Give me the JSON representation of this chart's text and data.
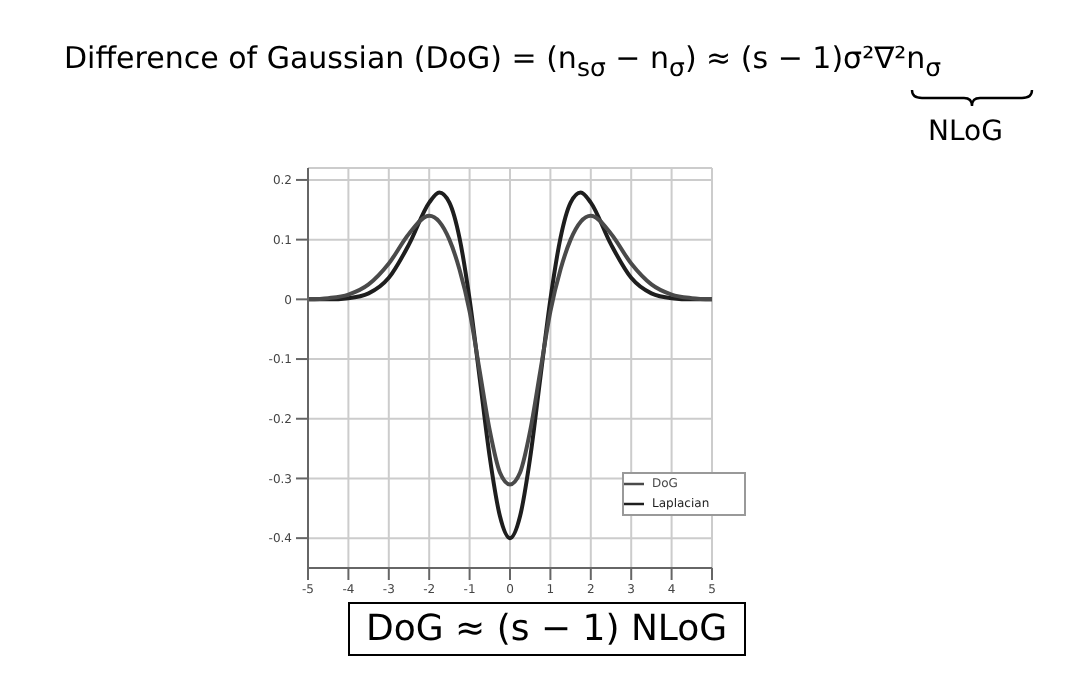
{
  "chart_data": {
    "type": "line",
    "title": "Difference of Gaussian (DoG) = (n$_{sσ}$ − n$_{σ}$) ≈ (s − 1)σ²∇²n$_{σ}$",
    "annotations": [
      "NLoG",
      "DoG ≈ (s − 1) NLoG"
    ],
    "x": [
      -5,
      -4.5,
      -4,
      -3.5,
      -3,
      -2.5,
      -2,
      -1.75,
      -1.5,
      -1.25,
      -1,
      -0.75,
      -0.5,
      -0.25,
      0,
      0.25,
      0.5,
      0.75,
      1,
      1.25,
      1.5,
      1.75,
      2,
      2.5,
      3,
      3.5,
      4,
      4.5,
      5
    ],
    "series": [
      {
        "name": "Laplacian",
        "color": "#1e1e1e",
        "values": [
          0,
          0,
          0.002,
          0.01,
          0.036,
          0.092,
          0.162,
          0.179,
          0.162,
          0.103,
          0,
          -0.132,
          -0.265,
          -0.363,
          -0.4,
          -0.363,
          -0.265,
          -0.132,
          0,
          0.103,
          0.162,
          0.179,
          0.162,
          0.092,
          0.036,
          0.01,
          0.002,
          0,
          0
        ]
      },
      {
        "name": "DoG",
        "color": "#4a4a4a",
        "values": [
          0,
          0.002,
          0.008,
          0.025,
          0.06,
          0.11,
          0.14,
          0.13,
          0.1,
          0.05,
          -0.02,
          -0.12,
          -0.22,
          -0.29,
          -0.31,
          -0.29,
          -0.22,
          -0.12,
          -0.02,
          0.05,
          0.1,
          0.13,
          0.14,
          0.11,
          0.06,
          0.025,
          0.008,
          0.002,
          0
        ]
      }
    ],
    "xlim": [
      -5,
      5
    ],
    "xticks": [
      -5,
      -4,
      -3,
      -2,
      -1,
      0,
      1,
      2,
      3,
      4,
      5
    ],
    "ylim": [
      -0.45,
      0.22
    ],
    "yticks": [
      -0.4,
      -0.3,
      -0.2,
      -0.1,
      0,
      0.1,
      0.2
    ],
    "grid": true,
    "legend": "bottom right",
    "marker": "none",
    "line_style": "solid"
  }
}
